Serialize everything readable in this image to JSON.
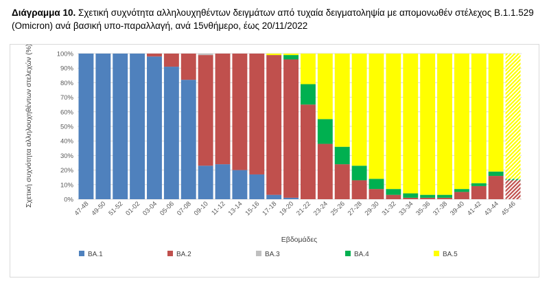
{
  "caption": {
    "lead": "Διάγραμμα 10.",
    "text": " Σχετική συχνότητα αλληλουχηθέντων δειγμάτων από τυχαία δειγματοληψία με απομονωθέν στέλεχος B.1.1.529 (Omicron) ανά βασική υπο-παραλλαγή, ανά 15νθήμερο, έως 20/11/2022"
  },
  "colors": {
    "BA.1": "#4f81bd",
    "BA.2": "#c0504d",
    "BA.3": "#bfbfbf",
    "BA.4": "#00b050",
    "BA.5": "#ffff00",
    "grid": "#d9d9d9"
  },
  "chart_data": {
    "type": "bar",
    "stacked": true,
    "title": "",
    "xlabel": "Εβδομάδες",
    "ylabel": "Σχετική συχνότητα αλληλουχηθέντων στελεχών (%)",
    "ylim": [
      0,
      100
    ],
    "yticks": [
      "0%",
      "10%",
      "20%",
      "30%",
      "40%",
      "50%",
      "60%",
      "70%",
      "80%",
      "90%",
      "100%"
    ],
    "grid": true,
    "legend_position": "bottom",
    "hatched_last_category": true,
    "categories": [
      "47-48",
      "49-50",
      "51-52",
      "01-02",
      "03-04",
      "05-06",
      "07-08",
      "09-10",
      "11-12",
      "13-14",
      "15-16",
      "17-18",
      "19-20",
      "21-22",
      "23-24",
      "25-26",
      "27-28",
      "29-30",
      "31-32",
      "33-34",
      "35-36",
      "37-38",
      "39-40",
      "41-42",
      "43-44",
      "45-46"
    ],
    "series": [
      {
        "name": "BA.1",
        "values": [
          100,
          100,
          100,
          100,
          98,
          91,
          82,
          23,
          24,
          20,
          17,
          3,
          1,
          0,
          0,
          0,
          0,
          0,
          0,
          0,
          0,
          0,
          0,
          0,
          0,
          0
        ]
      },
      {
        "name": "BA.2",
        "values": [
          0,
          0,
          0,
          0,
          2,
          9,
          18,
          76,
          76,
          80,
          83,
          96,
          95,
          65,
          38,
          24,
          13,
          7,
          3,
          1,
          1,
          1,
          5,
          9,
          16,
          13
        ]
      },
      {
        "name": "BA.3",
        "values": [
          0,
          0,
          0,
          0,
          0,
          0,
          0,
          1,
          0,
          0,
          0,
          0,
          0,
          0,
          0,
          0,
          0,
          0,
          0,
          0,
          0,
          0,
          0,
          0,
          0,
          0
        ]
      },
      {
        "name": "BA.4",
        "values": [
          0,
          0,
          0,
          0,
          0,
          0,
          0,
          0,
          0,
          0,
          0,
          0,
          3,
          14,
          17,
          12,
          10,
          7,
          4,
          3,
          2,
          2,
          2,
          2,
          3,
          1
        ]
      },
      {
        "name": "BA.5",
        "values": [
          0,
          0,
          0,
          0,
          0,
          0,
          0,
          0,
          0,
          0,
          0,
          1,
          1,
          21,
          45,
          64,
          77,
          86,
          93,
          96,
          97,
          97,
          93,
          89,
          81,
          86
        ]
      }
    ]
  }
}
